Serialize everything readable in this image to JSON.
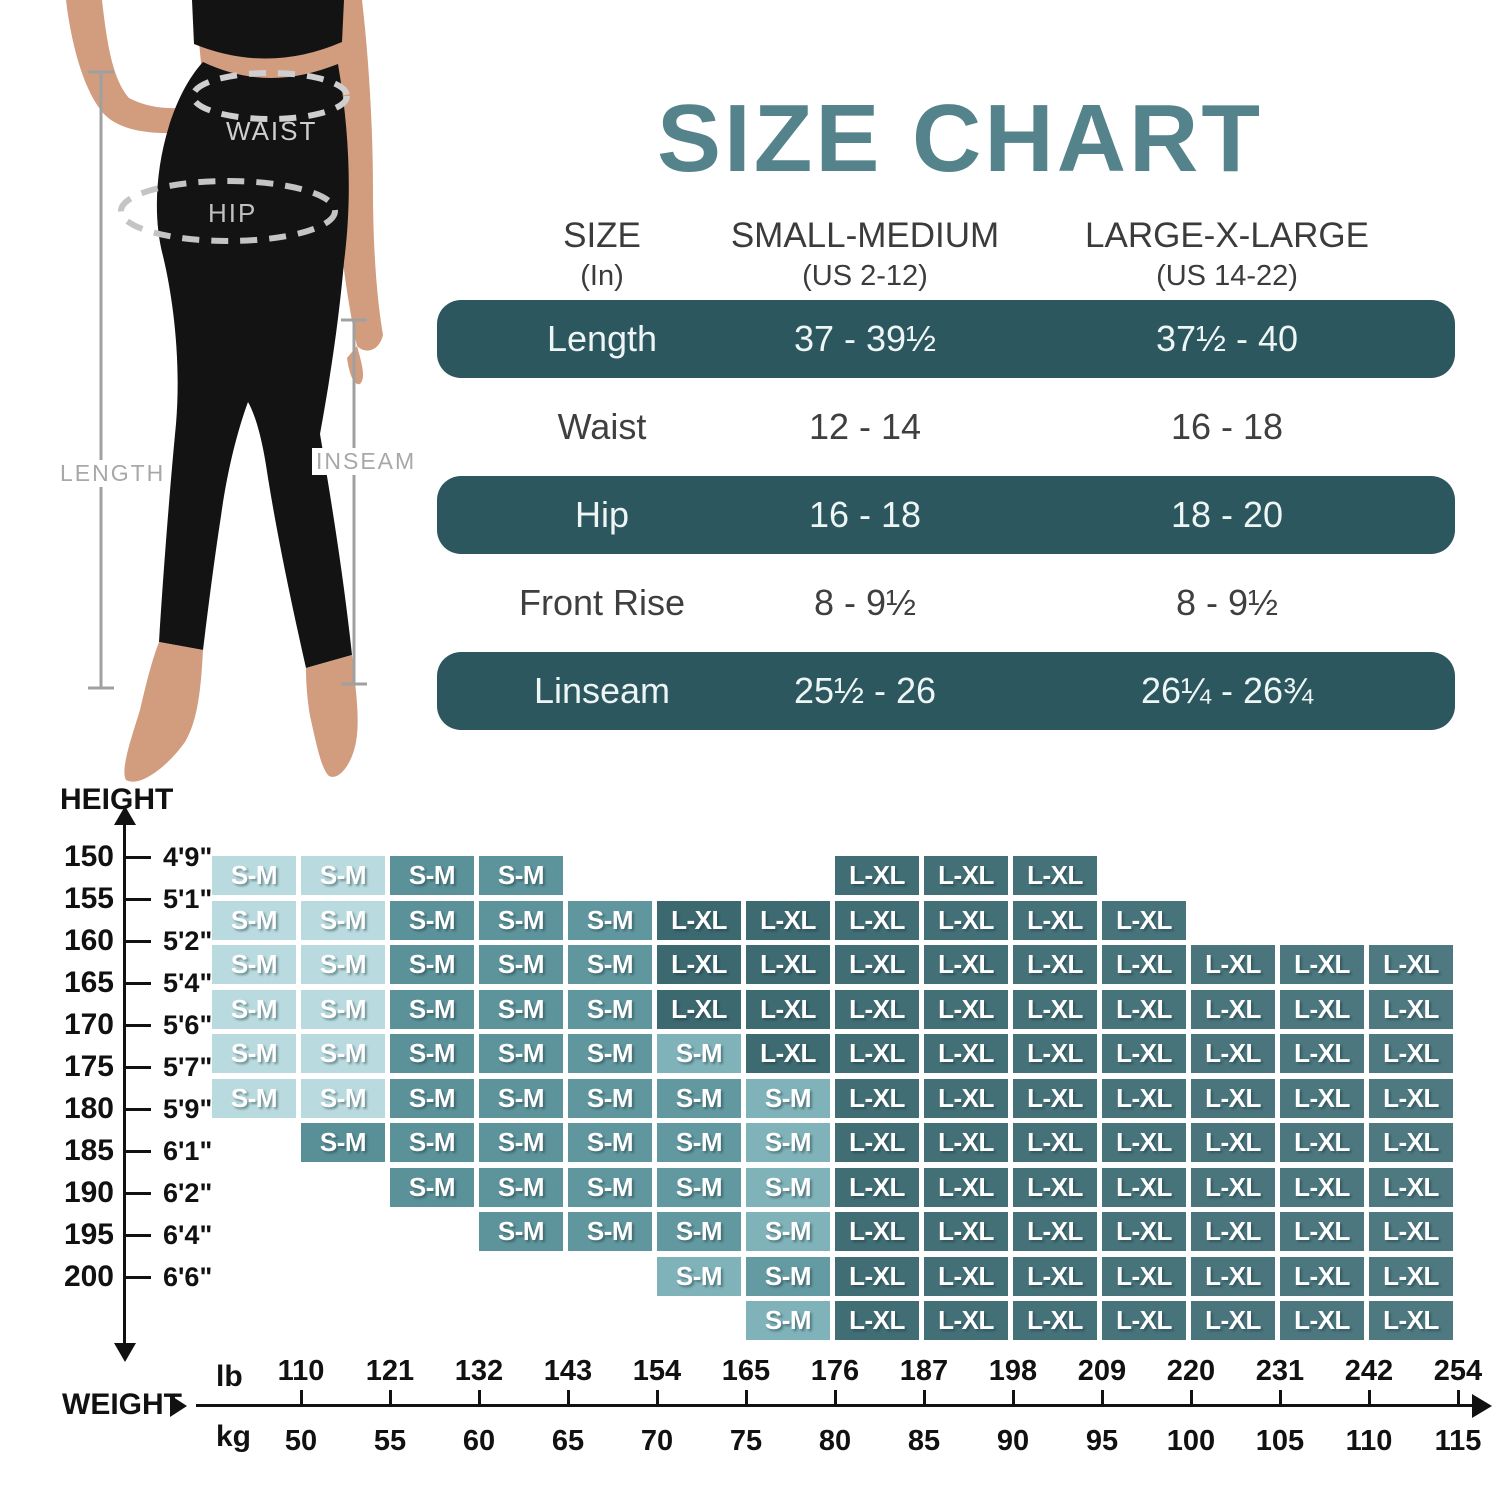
{
  "title": "SIZE CHART",
  "palette": {
    "title_teal": "#55838b",
    "pill_teal": "#2c575e",
    "cell_light": "#b9dbdf",
    "cell_medium_start": "#578d95",
    "cell_medium_end": "#73a9b1",
    "cell_fade": "#7fb2b9",
    "cell_dark_start": "#315e66",
    "cell_dark_end": "#4e7981",
    "skin": "#d29c7f",
    "garment_black": "#131313",
    "measure_gray": "#a0a0a0"
  },
  "figure": {
    "waist_label": "WAIST",
    "hip_label": "HIP",
    "length_label": "LENGTH",
    "inseam_label": "INSEAM"
  },
  "size_table": {
    "col_headers": [
      {
        "title": "SIZE",
        "sub": "(In)"
      },
      {
        "title": "SMALL-MEDIUM",
        "sub": "(US 2-12)"
      },
      {
        "title": "LARGE-X-LARGE",
        "sub": "(US 14-22)"
      }
    ],
    "rows": [
      {
        "label": "Length",
        "sm": "37 - 39½",
        "lxl": "37½ - 40",
        "highlight": true
      },
      {
        "label": "Waist",
        "sm": "12 - 14",
        "lxl": "16 - 18",
        "highlight": false
      },
      {
        "label": "Hip",
        "sm": "16 - 18",
        "lxl": "18 - 20",
        "highlight": true
      },
      {
        "label": "Front Rise",
        "sm": "8 - 9½",
        "lxl": "8 - 9½",
        "highlight": false
      },
      {
        "label": "Linseam",
        "sm": "25½ - 26",
        "lxl": "26¼ - 26¾",
        "highlight": true
      }
    ]
  },
  "chart_data": {
    "type": "heatmap",
    "title": "height-weight size selector",
    "y_axis": {
      "label": "HEIGHT",
      "cm": [
        150,
        155,
        160,
        165,
        170,
        175,
        180,
        185,
        190,
        195,
        200
      ],
      "ft": [
        "4'9\"",
        "5'1\"",
        "5'2\"",
        "5'4\"",
        "5'6\"",
        "5'7\"",
        "5'9\"",
        "6'1\"",
        "6'2\"",
        "6'4\"",
        "6'6\""
      ]
    },
    "x_axis": {
      "label": "WEIGHT",
      "unit_top": "lb",
      "unit_bottom": "kg",
      "lb": [
        110,
        121,
        132,
        143,
        154,
        165,
        176,
        187,
        198,
        209,
        220,
        231,
        242,
        254
      ],
      "kg": [
        50,
        55,
        60,
        65,
        70,
        75,
        80,
        85,
        90,
        95,
        100,
        105,
        110,
        115
      ]
    },
    "cell_labels": {
      "L": "S-M",
      "M": "S-M",
      "F": "S-M",
      "D": "L-XL"
    },
    "matrix": [
      [
        "L",
        "L",
        "M",
        "M",
        "",
        "",
        "",
        "D",
        "D",
        "D",
        "",
        "",
        "",
        ""
      ],
      [
        "L",
        "L",
        "M",
        "M",
        "M",
        "D",
        "D",
        "D",
        "D",
        "D",
        "D",
        "",
        "",
        ""
      ],
      [
        "L",
        "L",
        "M",
        "M",
        "M",
        "D",
        "D",
        "D",
        "D",
        "D",
        "D",
        "D",
        "D",
        "D"
      ],
      [
        "L",
        "L",
        "M",
        "M",
        "M",
        "D",
        "D",
        "D",
        "D",
        "D",
        "D",
        "D",
        "D",
        "D"
      ],
      [
        "L",
        "L",
        "M",
        "M",
        "M",
        "F",
        "D",
        "D",
        "D",
        "D",
        "D",
        "D",
        "D",
        "D"
      ],
      [
        "L",
        "L",
        "M",
        "M",
        "M",
        "M",
        "F",
        "D",
        "D",
        "D",
        "D",
        "D",
        "D",
        "D"
      ],
      [
        "",
        "M",
        "M",
        "M",
        "M",
        "M",
        "F",
        "D",
        "D",
        "D",
        "D",
        "D",
        "D",
        "D"
      ],
      [
        "",
        "",
        "M",
        "M",
        "M",
        "M",
        "F",
        "D",
        "D",
        "D",
        "D",
        "D",
        "D",
        "D"
      ],
      [
        "",
        "",
        "",
        "M",
        "M",
        "M",
        "F",
        "D",
        "D",
        "D",
        "D",
        "D",
        "D",
        "D"
      ],
      [
        "",
        "",
        "",
        "",
        "",
        "F",
        "M",
        "D",
        "D",
        "D",
        "D",
        "D",
        "D",
        "D"
      ],
      [
        "",
        "",
        "",
        "",
        "",
        "",
        "F",
        "D",
        "D",
        "D",
        "D",
        "D",
        "D",
        "D"
      ]
    ]
  }
}
